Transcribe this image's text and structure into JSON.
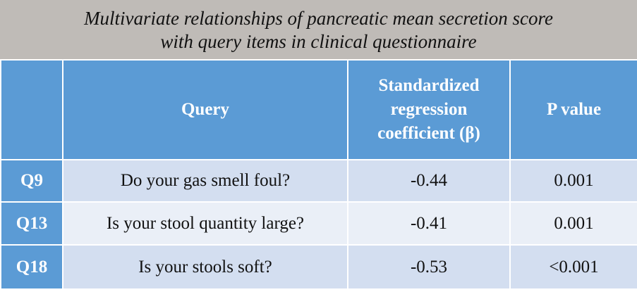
{
  "title": [
    "Multivariate relationships of pancreatic mean secretion score",
    "with query items in clinical questionnaire"
  ],
  "table": {
    "header": [
      "Query",
      "Standardized regression coefficient (β)",
      "P value"
    ],
    "rows": [
      [
        "Q9",
        "Do your gas smell foul?",
        "-0.44",
        "0.001"
      ],
      [
        "Q13",
        "Is your stool quantity large?",
        "-0.41",
        "0.001"
      ],
      [
        "Q18",
        "Is your stools soft?",
        "-0.53",
        "<0.001"
      ]
    ]
  }
}
